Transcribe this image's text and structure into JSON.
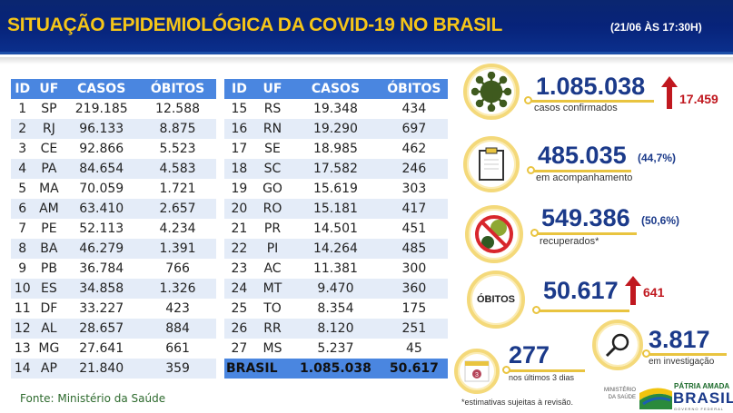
{
  "header": {
    "title": "SITUAÇÃO EPIDEMIOLÓGICA DA COVID-19 NO BRASIL",
    "date": "(21/06 ÀS 17:30H)"
  },
  "table": {
    "columns": [
      "ID",
      "UF",
      "CASOS",
      "ÓBITOS"
    ],
    "left": [
      [
        "1",
        "SP",
        "219.185",
        "12.588"
      ],
      [
        "2",
        "RJ",
        "96.133",
        "8.875"
      ],
      [
        "3",
        "CE",
        "92.866",
        "5.523"
      ],
      [
        "4",
        "PA",
        "84.654",
        "4.583"
      ],
      [
        "5",
        "MA",
        "70.059",
        "1.721"
      ],
      [
        "6",
        "AM",
        "63.410",
        "2.657"
      ],
      [
        "7",
        "PE",
        "52.113",
        "4.234"
      ],
      [
        "8",
        "BA",
        "46.279",
        "1.391"
      ],
      [
        "9",
        "PB",
        "36.784",
        "766"
      ],
      [
        "10",
        "ES",
        "34.858",
        "1.326"
      ],
      [
        "11",
        "DF",
        "33.227",
        "423"
      ],
      [
        "12",
        "AL",
        "28.657",
        "884"
      ],
      [
        "13",
        "MG",
        "27.641",
        "661"
      ],
      [
        "14",
        "AP",
        "21.840",
        "359"
      ]
    ],
    "right": [
      [
        "15",
        "RS",
        "19.348",
        "434"
      ],
      [
        "16",
        "RN",
        "19.290",
        "697"
      ],
      [
        "17",
        "SE",
        "18.985",
        "462"
      ],
      [
        "18",
        "SC",
        "17.582",
        "246"
      ],
      [
        "19",
        "GO",
        "15.619",
        "303"
      ],
      [
        "20",
        "RO",
        "15.181",
        "417"
      ],
      [
        "21",
        "PR",
        "14.501",
        "451"
      ],
      [
        "22",
        "PI",
        "14.264",
        "485"
      ],
      [
        "23",
        "AC",
        "11.381",
        "300"
      ],
      [
        "24",
        "MT",
        "9.470",
        "360"
      ],
      [
        "25",
        "TO",
        "8.354",
        "175"
      ],
      [
        "26",
        "RR",
        "8.120",
        "251"
      ],
      [
        "27",
        "MS",
        "5.237",
        "45"
      ]
    ],
    "total": {
      "label": "BRASIL",
      "casos": "1.085.038",
      "obitos": "50.617"
    }
  },
  "source": "Fonte: Ministério da Saúde",
  "stats": {
    "confirmed": {
      "value": "1.085.038",
      "label": "casos confirmados",
      "increase": "17.459",
      "icon": "virus-icon"
    },
    "monitoring": {
      "value": "485.035",
      "pct": "(44,7%)",
      "label": "em acompanhamento",
      "icon": "clipboard-icon"
    },
    "recovered": {
      "value": "549.386",
      "pct": "(50,6%)",
      "label": "recuperados*",
      "icon": "no-virus-icon"
    },
    "deaths": {
      "badge": "ÓBITOS",
      "value": "50.617",
      "increase": "641"
    },
    "investigation": {
      "value": "3.817",
      "label": "em investigação",
      "icon": "magnifier-icon"
    },
    "recent": {
      "value": "277",
      "label": "nos últimos 3 dias",
      "calendar_day": "3",
      "icon": "calendar-icon"
    }
  },
  "footnote": "*estimativas sujeitas à revisão.",
  "logos": {
    "ministry": "MINISTÉRIO DA SAÚDE",
    "brand_top": "PÁTRIA AMADA",
    "brand_main": "BRASIL",
    "brand_sub": "GOVERNO FEDERAL"
  },
  "colors": {
    "header": "#0a2670",
    "title": "#f5c518",
    "table_header": "#4a86e0",
    "number": "#1b3a8a",
    "increase": "#c0181f",
    "ring": "#f4d97a"
  }
}
